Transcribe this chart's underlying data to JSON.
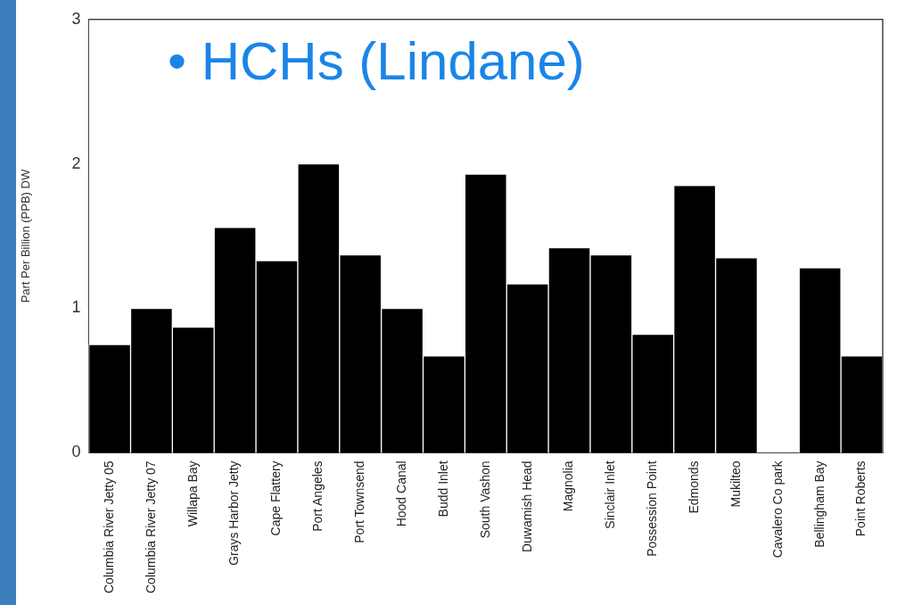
{
  "chart_data": {
    "type": "bar",
    "title": "• HCHs (Lindane)",
    "ylabel": "Part Per Billion (PPB) DW",
    "categories": [
      "Columbia River Jetty 05",
      "Columbia River Jetty 07",
      "Willapa Bay",
      "Grays Harbor Jetty",
      "Cape Flattery",
      "Port Angeles",
      "Port Townsend",
      "Hood Canal",
      "Budd Inlet",
      "South Vashon",
      "Duwamish Head",
      "Magnolia",
      "Sinclair Inlet",
      "Possession Point",
      "Edmonds",
      "Mukilteo",
      "Cavalero Co park",
      "Bellingham Bay",
      "Point Roberts"
    ],
    "values": [
      0.75,
      1.0,
      0.87,
      1.56,
      1.33,
      2.0,
      1.37,
      1.0,
      0.67,
      1.93,
      1.17,
      1.42,
      1.37,
      0.82,
      1.85,
      1.35,
      0,
      1.28,
      0.67
    ],
    "color": "#000000",
    "ylim": [
      0,
      3
    ],
    "yticks": [
      0,
      1,
      2,
      3
    ],
    "grid": false,
    "legend": false
  }
}
